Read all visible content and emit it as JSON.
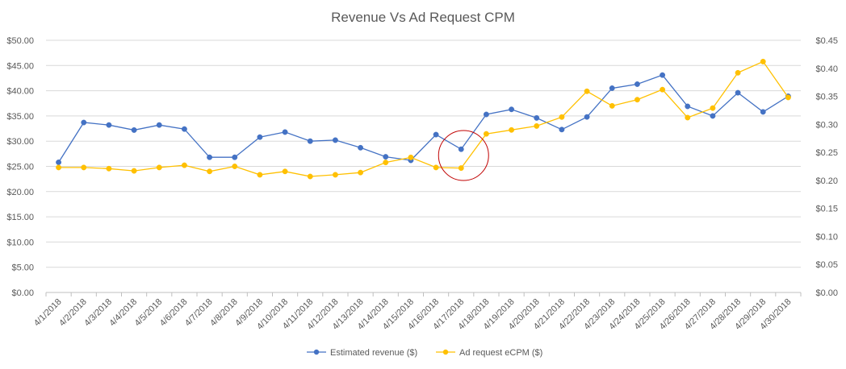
{
  "chart_data": {
    "type": "line",
    "title": "Revenue Vs Ad Request CPM",
    "categories": [
      "4/1/2018",
      "4/2/2018",
      "4/3/2018",
      "4/4/2018",
      "4/5/2018",
      "4/6/2018",
      "4/7/2018",
      "4/8/2018",
      "4/9/2018",
      "4/10/2018",
      "4/11/2018",
      "4/12/2018",
      "4/13/2018",
      "4/14/2018",
      "4/15/2018",
      "4/16/2018",
      "4/17/2018",
      "4/18/2018",
      "4/19/2018",
      "4/20/2018",
      "4/21/2018",
      "4/22/2018",
      "4/23/2018",
      "4/24/2018",
      "4/25/2018",
      "4/26/2018",
      "4/27/2018",
      "4/28/2018",
      "4/29/2018",
      "4/30/2018"
    ],
    "y_left": {
      "ylim": [
        0,
        50
      ],
      "ticks": [
        "$0.00",
        "$5.00",
        "$10.00",
        "$15.00",
        "$20.00",
        "$25.00",
        "$30.00",
        "$35.00",
        "$40.00",
        "$45.00",
        "$50.00"
      ]
    },
    "y_right": {
      "ylim": [
        0,
        0.45
      ],
      "ticks": [
        "$0.00",
        "$0.05",
        "$0.10",
        "$0.15",
        "$0.20",
        "$0.25",
        "$0.30",
        "$0.35",
        "$0.40",
        "$0.45"
      ]
    },
    "series": [
      {
        "name": "Estimated revenue ($)",
        "axis": "left",
        "color": "#4472C4",
        "values": [
          25.8,
          33.7,
          33.2,
          32.2,
          33.2,
          32.4,
          26.8,
          26.8,
          30.8,
          31.8,
          30.0,
          30.2,
          28.7,
          26.9,
          26.2,
          31.3,
          28.4,
          35.3,
          36.3,
          34.6,
          32.3,
          34.8,
          40.5,
          41.3,
          43.1,
          36.9,
          35.0,
          39.6,
          35.8,
          38.9
        ]
      },
      {
        "name": "Ad request eCPM ($)",
        "axis": "right",
        "color": "#FFC000",
        "values": [
          0.223,
          0.223,
          0.221,
          0.217,
          0.223,
          0.227,
          0.216,
          0.225,
          0.21,
          0.216,
          0.207,
          0.21,
          0.214,
          0.232,
          0.241,
          0.223,
          0.222,
          0.283,
          0.29,
          0.297,
          0.313,
          0.359,
          0.333,
          0.344,
          0.362,
          0.312,
          0.329,
          0.392,
          0.412,
          0.348
        ]
      }
    ],
    "annotation": {
      "type": "circle",
      "category_index": 16,
      "color": "#C00000"
    },
    "grid": true,
    "legend_position": "bottom"
  }
}
